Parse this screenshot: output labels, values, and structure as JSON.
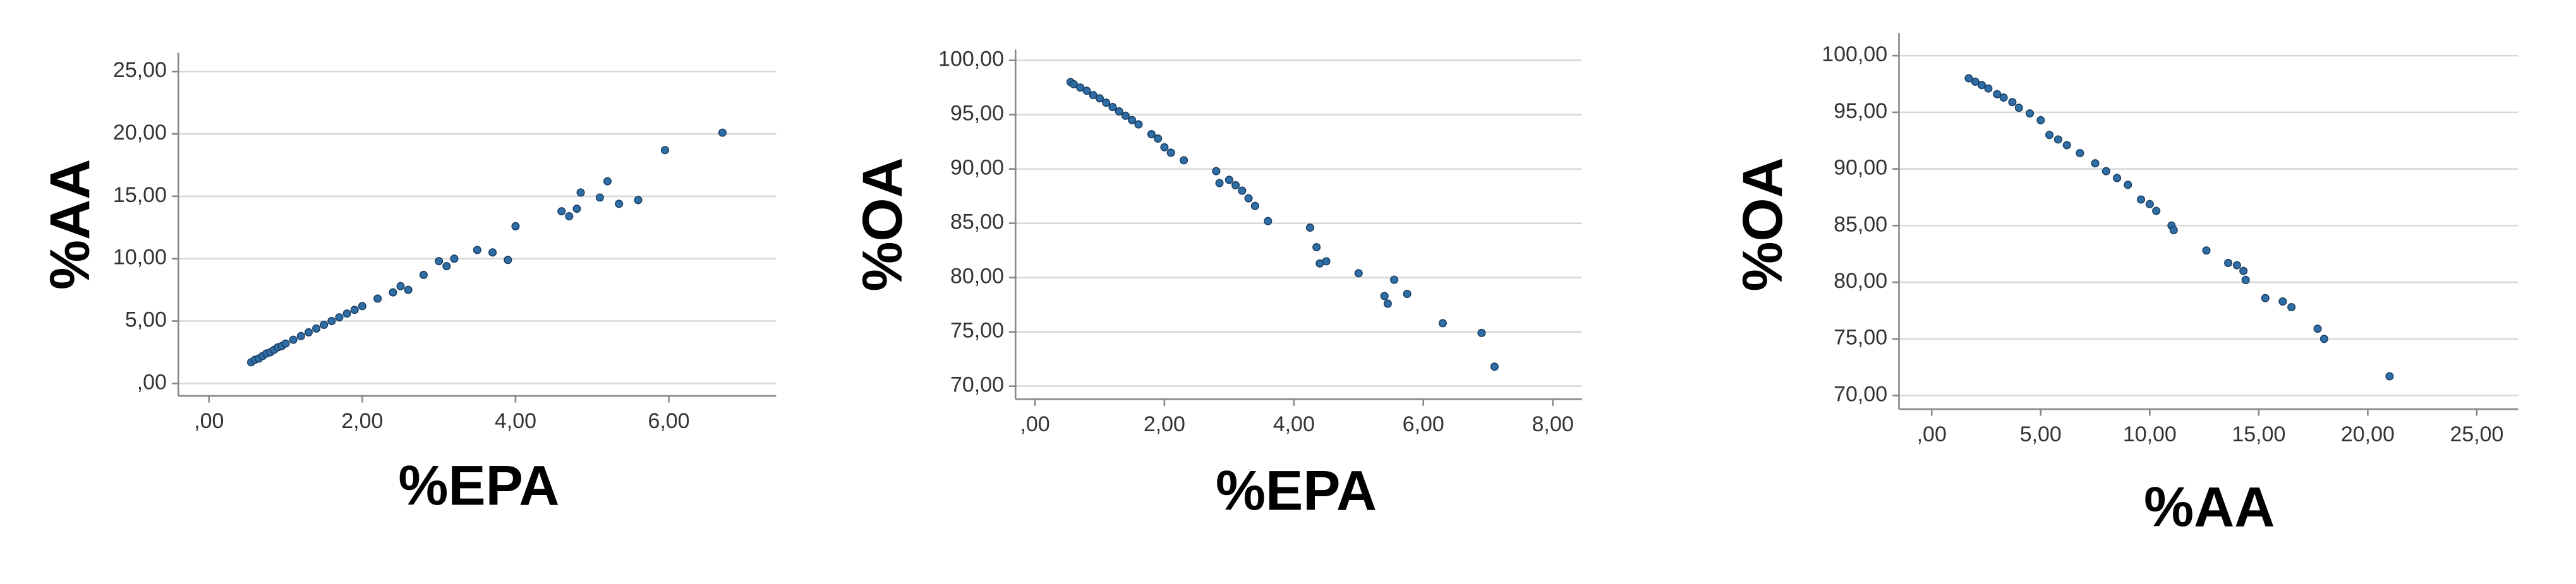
{
  "chart_data": [
    {
      "type": "scatter",
      "x_label": "%EPA",
      "y_label": "%AA",
      "color": "#2f6da6",
      "grid": true,
      "x": [
        0.55,
        0.6,
        0.65,
        0.7,
        0.75,
        0.8,
        0.85,
        0.9,
        0.95,
        1.0,
        1.1,
        1.2,
        1.3,
        1.4,
        1.5,
        1.6,
        1.7,
        1.8,
        1.9,
        2.0,
        2.2,
        2.4,
        2.5,
        2.6,
        2.8,
        3.0,
        3.1,
        3.2,
        3.5,
        3.7,
        3.9,
        4.0,
        4.6,
        4.7,
        4.8,
        4.85,
        5.1,
        5.2,
        5.35,
        5.6,
        5.95,
        6.7
      ],
      "values": [
        1.7,
        1.9,
        2.0,
        2.2,
        2.4,
        2.5,
        2.7,
        2.9,
        3.0,
        3.2,
        3.5,
        3.8,
        4.1,
        4.4,
        4.7,
        5.0,
        5.3,
        5.6,
        5.9,
        6.2,
        6.8,
        7.3,
        7.8,
        7.5,
        8.7,
        9.8,
        9.4,
        10.0,
        10.7,
        10.5,
        9.9,
        12.6,
        13.8,
        13.4,
        14.0,
        15.3,
        14.9,
        16.2,
        14.4,
        14.7,
        18.7,
        20.1
      ],
      "xlim": [
        -0.4,
        7.4
      ],
      "ylim": [
        -1,
        26.5
      ],
      "xticks": [
        {
          "value": 0,
          "label": ",00"
        },
        {
          "value": 2,
          "label": "2,00"
        },
        {
          "value": 4,
          "label": "4,00"
        },
        {
          "value": 6,
          "label": "6,00"
        }
      ],
      "yticks": [
        {
          "value": 0,
          "label": ",00"
        },
        {
          "value": 5,
          "label": "5,00"
        },
        {
          "value": 10,
          "label": "10,00"
        },
        {
          "value": 15,
          "label": "15,00"
        },
        {
          "value": 20,
          "label": "20,00"
        },
        {
          "value": 25,
          "label": "25,00"
        }
      ]
    },
    {
      "type": "scatter",
      "x_label": "%EPA",
      "y_label": "%OA",
      "color": "#2f6da6",
      "grid": true,
      "x": [
        0.55,
        0.6,
        0.7,
        0.8,
        0.9,
        1.0,
        1.1,
        1.2,
        1.3,
        1.4,
        1.5,
        1.6,
        1.8,
        1.9,
        2.0,
        2.1,
        2.3,
        2.8,
        2.85,
        3.0,
        3.1,
        3.2,
        3.3,
        3.4,
        3.6,
        4.25,
        4.35,
        4.4,
        4.5,
        5.0,
        5.4,
        5.45,
        5.55,
        5.75,
        6.3,
        6.9,
        7.1
      ],
      "values": [
        98,
        97.8,
        97.5,
        97.2,
        96.8,
        96.5,
        96.1,
        95.7,
        95.3,
        94.9,
        94.5,
        94.1,
        93.2,
        92.8,
        92.0,
        91.5,
        90.8,
        89.8,
        88.7,
        89.0,
        88.5,
        88.0,
        87.3,
        86.6,
        85.2,
        84.6,
        82.8,
        81.3,
        81.5,
        80.4,
        78.3,
        77.6,
        79.8,
        78.5,
        75.8,
        74.9,
        71.8
      ],
      "xlim": [
        -0.3,
        8.45
      ],
      "ylim": [
        68.8,
        101
      ],
      "xticks": [
        {
          "value": 0,
          "label": ",00"
        },
        {
          "value": 2,
          "label": "2,00"
        },
        {
          "value": 4,
          "label": "4,00"
        },
        {
          "value": 6,
          "label": "6,00"
        },
        {
          "value": 8,
          "label": "8,00"
        }
      ],
      "yticks": [
        {
          "value": 70,
          "label": "70,00"
        },
        {
          "value": 75,
          "label": "75,00"
        },
        {
          "value": 80,
          "label": "80,00"
        },
        {
          "value": 85,
          "label": "85,00"
        },
        {
          "value": 90,
          "label": "90,00"
        },
        {
          "value": 95,
          "label": "95,00"
        },
        {
          "value": 100,
          "label": "100,00"
        }
      ]
    },
    {
      "type": "scatter",
      "x_label": "%AA",
      "y_label": "%OA",
      "color": "#2f6da6",
      "grid": true,
      "x": [
        1.7,
        2.0,
        2.3,
        2.6,
        3.0,
        3.3,
        3.7,
        4.0,
        4.5,
        5.0,
        5.4,
        5.8,
        6.2,
        6.8,
        7.5,
        8.0,
        8.5,
        9.0,
        9.6,
        10.0,
        10.3,
        11.0,
        11.1,
        12.6,
        13.6,
        14.0,
        14.3,
        14.4,
        15.3,
        16.1,
        16.5,
        17.7,
        18.0,
        21.0
      ],
      "values": [
        98,
        97.7,
        97.4,
        97.1,
        96.6,
        96.3,
        95.9,
        95.4,
        94.9,
        94.3,
        93.0,
        92.6,
        92.1,
        91.4,
        90.5,
        89.8,
        89.2,
        88.6,
        87.3,
        86.9,
        86.3,
        85.0,
        84.6,
        82.8,
        81.7,
        81.5,
        81.0,
        80.2,
        78.6,
        78.3,
        77.8,
        75.9,
        75.0,
        71.7
      ],
      "xlim": [
        -1.5,
        26.9
      ],
      "ylim": [
        68.8,
        102
      ],
      "xticks": [
        {
          "value": 0,
          "label": ",00"
        },
        {
          "value": 5,
          "label": "5,00"
        },
        {
          "value": 10,
          "label": "10,00"
        },
        {
          "value": 15,
          "label": "15,00"
        },
        {
          "value": 20,
          "label": "20,00"
        },
        {
          "value": 25,
          "label": "25,00"
        }
      ],
      "yticks": [
        {
          "value": 70,
          "label": "70,00"
        },
        {
          "value": 75,
          "label": "75,00"
        },
        {
          "value": 80,
          "label": "80,00"
        },
        {
          "value": 85,
          "label": "85,00"
        },
        {
          "value": 90,
          "label": "90,00"
        },
        {
          "value": 95,
          "label": "95,00"
        },
        {
          "value": 100,
          "label": "100,00"
        }
      ]
    }
  ]
}
